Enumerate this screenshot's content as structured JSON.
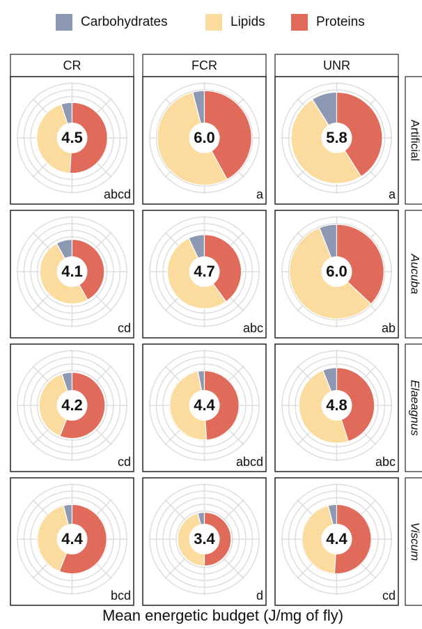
{
  "chart_data": {
    "type": "polar-donut",
    "x_label": "Mean energetic budget (J/mg of fly)",
    "columns": [
      "CR",
      "FCR",
      "UNR"
    ],
    "rows": [
      "Artificial",
      "Aucuba",
      "Elaeagnus",
      "Viscum"
    ],
    "series": [
      {
        "name": "Carbohydrates",
        "color": "#8d99b3",
        "values": [
          [
            5,
            4,
            9
          ],
          [
            8,
            7,
            6
          ],
          [
            5,
            3,
            6
          ],
          [
            4,
            4,
            4
          ]
        ]
      },
      {
        "name": "Lipids",
        "color": "#fbdc9e",
        "values": [
          [
            44,
            54,
            50
          ],
          [
            50,
            53,
            57
          ],
          [
            39,
            48,
            49
          ],
          [
            40,
            46,
            45
          ]
        ]
      },
      {
        "name": "Proteins",
        "color": "#e06b5a",
        "values": [
          [
            51,
            42,
            41
          ],
          [
            42,
            40,
            37
          ],
          [
            56,
            49,
            45
          ],
          [
            56,
            50,
            51
          ]
        ]
      }
    ],
    "totals": [
      [
        4.5,
        6.0,
        5.8
      ],
      [
        4.1,
        4.7,
        6.0
      ],
      [
        4.2,
        4.4,
        4.8
      ],
      [
        4.4,
        3.4,
        4.4
      ]
    ],
    "total_labels": [
      [
        "4.5",
        "6.0",
        "5.8"
      ],
      [
        "4.1",
        "4.7",
        "6.0"
      ],
      [
        "4.2",
        "4.4",
        "4.8"
      ],
      [
        "4.4",
        "3.4",
        "4.4"
      ]
    ],
    "letters": [
      [
        "abcd",
        "a",
        "a"
      ],
      [
        "cd",
        "abc",
        "ab"
      ],
      [
        "cd",
        "abcd",
        "abc"
      ],
      [
        "bcd",
        "d",
        "cd"
      ]
    ]
  }
}
